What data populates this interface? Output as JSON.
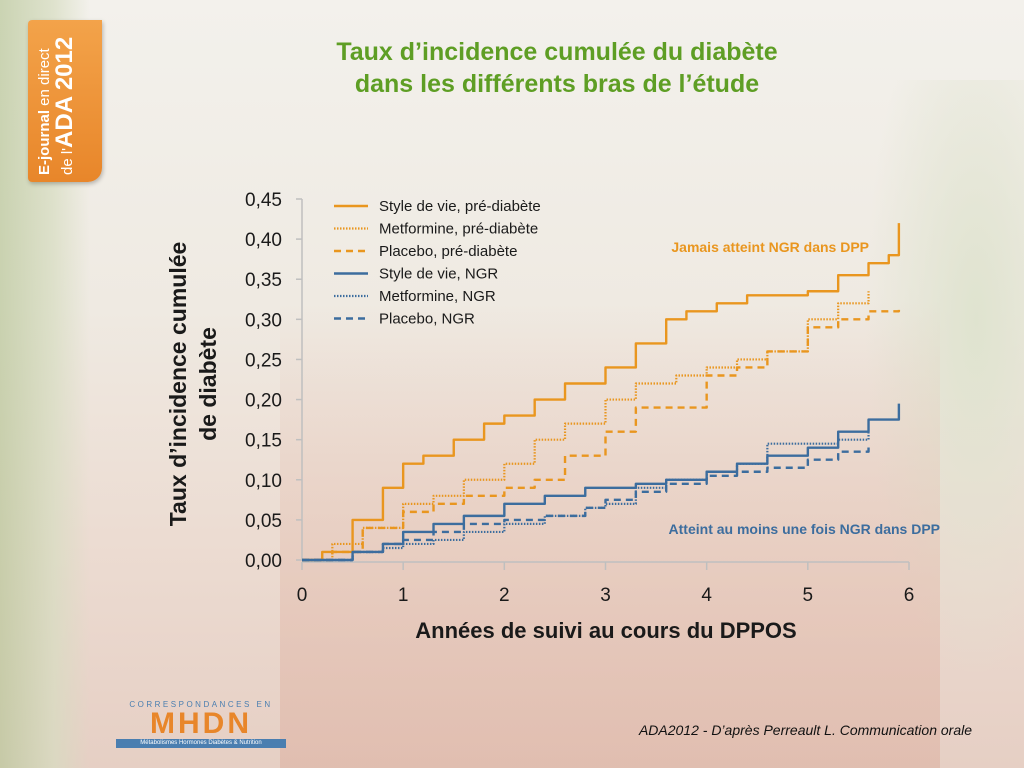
{
  "badge": {
    "line1_a": "E-journal",
    "line1_b": " en direct",
    "line1_c": "de l'",
    "line2": "ADA 2012"
  },
  "title_line1": "Taux d’incidence cumulée du diabète",
  "title_line2": "dans les différents bras de l’étude",
  "annotations": {
    "top": "Jamais atteint NGR dans DPP",
    "bottom": "Atteint au moins une fois NGR dans DPP"
  },
  "logo": {
    "top": "CORRESPONDANCES EN",
    "main": "MHDN",
    "bar": "Métabolismes  Hormones  Diabètes & Nutrition"
  },
  "footnote": "ADA2012 - D’après Perreault L. Communication orale",
  "colors": {
    "orange": "#e9961f",
    "blue": "#3c6d9e",
    "title_green": "#5e9e24",
    "badge": "#e8862a"
  },
  "chart_data": {
    "type": "line",
    "title": "",
    "xlabel": "Années de suivi au cours du DPPOS",
    "ylabel_line1": "Taux d’incidence cumulée",
    "ylabel_line2": "de diabète",
    "xlim": [
      0,
      6
    ],
    "ylim": [
      0,
      0.45
    ],
    "x_ticks": [
      0,
      1,
      2,
      3,
      4,
      5,
      6
    ],
    "x_tick_labels": [
      "0",
      "1",
      "2",
      "3",
      "4",
      "5",
      "6"
    ],
    "y_ticks": [
      0,
      0.05,
      0.1,
      0.15,
      0.2,
      0.25,
      0.3,
      0.35,
      0.4,
      0.45
    ],
    "y_tick_labels": [
      "0,00",
      "0,05",
      "0,10",
      "0,15",
      "0,20",
      "0,25",
      "0,30",
      "0,35",
      "0,40",
      "0,45"
    ],
    "legend_position": "top-left",
    "series": [
      {
        "name": "Style de vie, pré-diabète",
        "color": "#e9961f",
        "style": "solid",
        "x": [
          0,
          0.2,
          0.5,
          0.8,
          1.0,
          1.2,
          1.5,
          1.8,
          2.0,
          2.3,
          2.6,
          3.0,
          3.3,
          3.6,
          3.8,
          4.1,
          4.4,
          4.7,
          5.0,
          5.3,
          5.6,
          5.8,
          5.9
        ],
        "y": [
          0,
          0.01,
          0.05,
          0.09,
          0.12,
          0.13,
          0.15,
          0.17,
          0.18,
          0.2,
          0.22,
          0.24,
          0.27,
          0.3,
          0.31,
          0.32,
          0.33,
          0.33,
          0.335,
          0.355,
          0.37,
          0.38,
          0.42
        ]
      },
      {
        "name": "Metformine, pré-diabète",
        "color": "#e9961f",
        "style": "dotted",
        "x": [
          0,
          0.3,
          0.6,
          1.0,
          1.3,
          1.6,
          2.0,
          2.3,
          2.6,
          3.0,
          3.3,
          3.7,
          4.0,
          4.3,
          4.6,
          5.0,
          5.3,
          5.6
        ],
        "y": [
          0,
          0.02,
          0.04,
          0.07,
          0.08,
          0.1,
          0.12,
          0.15,
          0.17,
          0.2,
          0.22,
          0.23,
          0.24,
          0.25,
          0.26,
          0.3,
          0.32,
          0.335
        ]
      },
      {
        "name": "Placebo, pré-diabète",
        "color": "#e9961f",
        "style": "dashed",
        "x": [
          0,
          0.3,
          0.6,
          1.0,
          1.3,
          1.6,
          2.0,
          2.3,
          2.6,
          3.0,
          3.3,
          3.7,
          4.0,
          4.3,
          4.6,
          5.0,
          5.3,
          5.6,
          5.9
        ],
        "y": [
          0,
          0.01,
          0.04,
          0.06,
          0.07,
          0.08,
          0.09,
          0.1,
          0.13,
          0.16,
          0.19,
          0.19,
          0.23,
          0.24,
          0.26,
          0.29,
          0.3,
          0.31,
          0.315
        ]
      },
      {
        "name": "Style de vie, NGR",
        "color": "#3c6d9e",
        "style": "solid",
        "x": [
          0,
          0.5,
          0.8,
          1.0,
          1.3,
          1.6,
          2.0,
          2.4,
          2.8,
          3.0,
          3.3,
          3.6,
          4.0,
          4.3,
          4.6,
          5.0,
          5.3,
          5.6,
          5.9
        ],
        "y": [
          0,
          0.01,
          0.02,
          0.035,
          0.045,
          0.055,
          0.07,
          0.08,
          0.09,
          0.09,
          0.095,
          0.1,
          0.11,
          0.12,
          0.13,
          0.14,
          0.16,
          0.175,
          0.195
        ]
      },
      {
        "name": "Metformine, NGR",
        "color": "#3c6d9e",
        "style": "dotted",
        "x": [
          0,
          0.5,
          0.8,
          1.0,
          1.3,
          1.6,
          2.0,
          2.4,
          2.8,
          3.0,
          3.3,
          3.6,
          4.0,
          4.3,
          4.6,
          5.0,
          5.3,
          5.6
        ],
        "y": [
          0,
          0.01,
          0.015,
          0.02,
          0.025,
          0.035,
          0.045,
          0.055,
          0.065,
          0.07,
          0.09,
          0.1,
          0.11,
          0.12,
          0.145,
          0.145,
          0.15,
          0.16
        ]
      },
      {
        "name": "Placebo, NGR",
        "color": "#3c6d9e",
        "style": "dashed",
        "x": [
          0,
          0.5,
          0.8,
          1.0,
          1.3,
          1.6,
          2.0,
          2.4,
          2.8,
          3.0,
          3.3,
          3.6,
          4.0,
          4.3,
          4.6,
          5.0,
          5.3,
          5.6
        ],
        "y": [
          0,
          0.01,
          0.02,
          0.025,
          0.035,
          0.045,
          0.05,
          0.055,
          0.065,
          0.075,
          0.085,
          0.095,
          0.105,
          0.11,
          0.115,
          0.125,
          0.135,
          0.145
        ]
      }
    ]
  }
}
